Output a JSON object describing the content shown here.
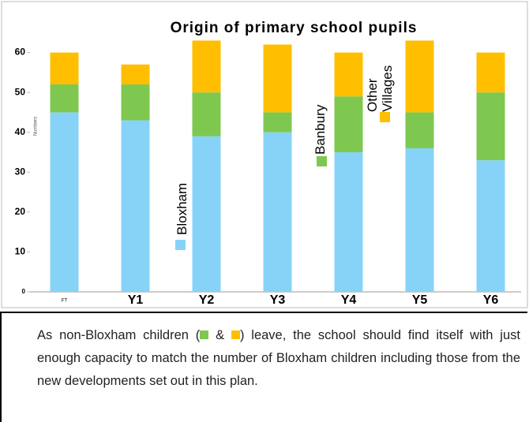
{
  "chart_data": {
    "type": "stacked_bar",
    "title": "Origin of primary school pupils",
    "y_label": "Numbers",
    "categories": [
      "FT",
      "Y1",
      "Y2",
      "Y3",
      "Y4",
      "Y5",
      "Y6"
    ],
    "series": [
      {
        "name": "Bloxham",
        "color": "#87d3f7",
        "values": [
          45,
          43,
          39,
          40,
          35,
          36,
          33
        ]
      },
      {
        "name": "Banbury",
        "color": "#7ec850",
        "values": [
          7,
          9,
          11,
          5,
          14,
          9,
          17
        ]
      },
      {
        "name": "Other Villages",
        "color": "#ffbf00",
        "values": [
          8,
          5,
          13,
          17,
          11,
          18,
          10
        ]
      }
    ],
    "ylim": [
      0,
      70
    ],
    "yticks": [
      0,
      10,
      20,
      30,
      40,
      50,
      60
    ],
    "grid": false
  },
  "caption": [
    "As non-Bloxham children (",
    " & ",
    ") leave,  the school should find itself with  just enough  capacity to match the number of Bloxham children including those from the new developments set out in this plan."
  ]
}
